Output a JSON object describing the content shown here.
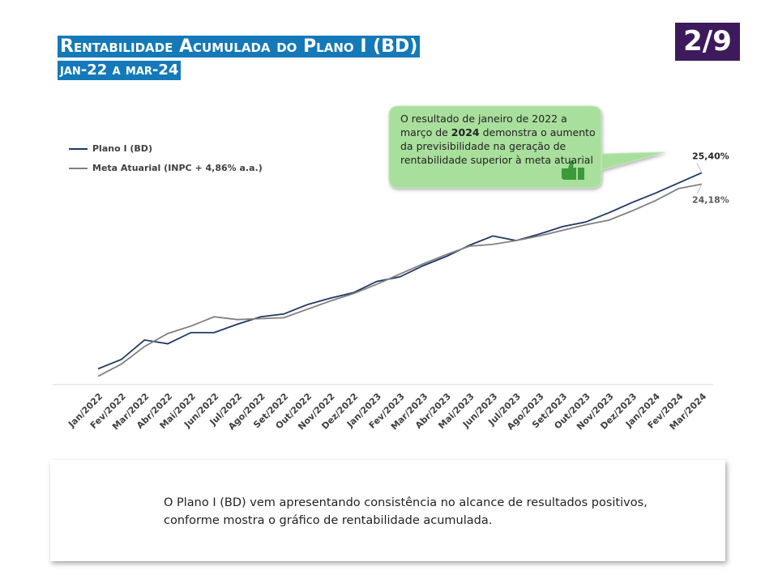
{
  "slide": {
    "title": "Rentabilidade Acumulada do Plano I (BD)",
    "subtitle": "jan-22 a mar-24",
    "page": "2/9",
    "callout": {
      "before": "O resultado de janeiro de 2022 a março de ",
      "bold": "2024",
      "after": " demonstra o aumento da previsibilidade na geração de rentabilidade superior à meta atuarial"
    },
    "note": "O Plano I (BD) vem apresentando consistência no alcance de resultados positivos, conforme mostra o gráfico de rentabilidade acumulada."
  },
  "chart_data": {
    "type": "line",
    "categories": [
      "Jan/2022",
      "Fev/2022",
      "Mar/2022",
      "Abr/2022",
      "Mai/2022",
      "Jun/2022",
      "Jul/2022",
      "Ago/2022",
      "Set/2022",
      "Out/2022",
      "Nov/2022",
      "Dez/2022",
      "Jan/2023",
      "Fev/2023",
      "Mar/2023",
      "Abr/2023",
      "Mai/2023",
      "Jun/2023",
      "Jul/2023",
      "Ago/2023",
      "Set/2023",
      "Out/2023",
      "Nov/2023",
      "Dez/2023",
      "Jan/2024",
      "Fev/2024",
      "Mar/2024"
    ],
    "series": [
      {
        "name": "Plano I (BD)",
        "color": "#1f3864",
        "values": [
          4.3,
          5.3,
          7.4,
          7.0,
          8.2,
          8.2,
          9.1,
          9.9,
          10.2,
          11.2,
          11.9,
          12.5,
          13.7,
          14.2,
          15.4,
          16.4,
          17.6,
          18.6,
          18.1,
          18.8,
          19.6,
          20.1,
          21.1,
          22.2,
          23.2,
          24.3,
          25.4
        ],
        "value_labels": [
          null,
          null,
          null,
          null,
          null,
          null,
          null,
          null,
          null,
          null,
          null,
          null,
          null,
          null,
          null,
          null,
          null,
          null,
          null,
          null,
          null,
          null,
          null,
          null,
          null,
          null,
          "25,40%"
        ]
      },
      {
        "name": "Meta Atuarial (INPC + 4,86% a.a.)",
        "color": "#808080",
        "values": [
          3.5,
          4.8,
          6.7,
          8.1,
          8.9,
          9.9,
          9.6,
          9.7,
          9.8,
          10.7,
          11.6,
          12.4,
          13.4,
          14.5,
          15.6,
          16.6,
          17.5,
          17.7,
          18.1,
          18.6,
          19.2,
          19.8,
          20.3,
          21.3,
          22.4,
          23.7,
          24.18
        ],
        "value_labels": [
          null,
          null,
          null,
          null,
          null,
          null,
          null,
          null,
          null,
          null,
          null,
          null,
          null,
          null,
          null,
          null,
          null,
          null,
          null,
          null,
          null,
          null,
          null,
          null,
          null,
          null,
          "24,18%"
        ]
      }
    ],
    "ylim": [
      2.6,
      27
    ],
    "legend": "upper left"
  }
}
